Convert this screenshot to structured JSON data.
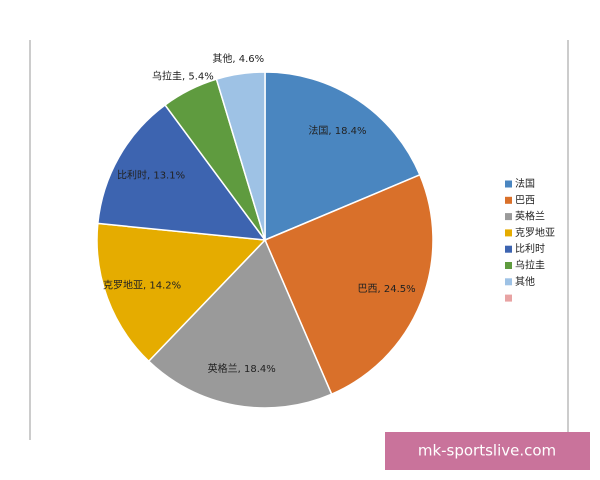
{
  "chart_data": {
    "type": "pie",
    "categories": [
      "法国",
      "巴西",
      "英格兰",
      "克罗地亚",
      "比利时",
      "乌拉圭",
      "其他",
      null
    ],
    "values": [
      18.4,
      24.5,
      18.4,
      14.2,
      13.1,
      5.4,
      4.6,
      null
    ],
    "value_labels": [
      "法国, 18.4%",
      "巴西, 24.5%",
      "英格兰, 18.4%",
      "克罗地亚, 14.2%",
      "比利时, 13.1%",
      "乌拉圭, 5.4%",
      "其他, 4.6%",
      null
    ],
    "colors": [
      "#4a86c0",
      "#d9702a",
      "#9a9a9a",
      "#e5ac00",
      "#3d64b0",
      "#5f9b3f",
      "#9ec2e5",
      "#e8a3a3"
    ],
    "legend": "right"
  },
  "watermark": "mk-sportslive.com"
}
